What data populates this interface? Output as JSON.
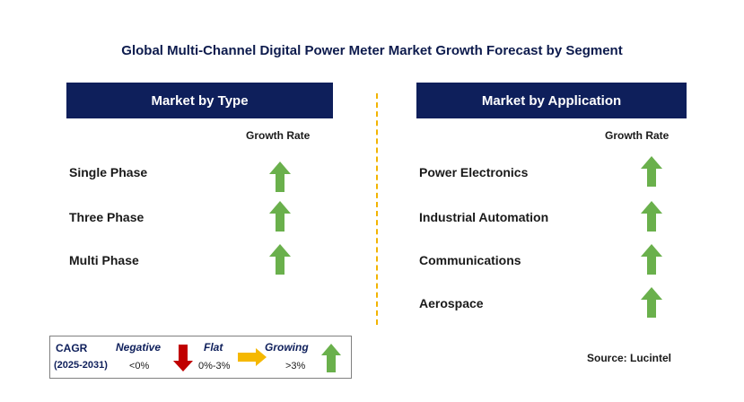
{
  "title": "Global Multi-Channel Digital Power Meter Market Growth Forecast by Segment",
  "left_panel": {
    "header": "Market by Type",
    "column_label": "Growth Rate",
    "rows": [
      {
        "label": "Single Phase",
        "trend": "growing"
      },
      {
        "label": "Three Phase",
        "trend": "growing"
      },
      {
        "label": "Multi Phase",
        "trend": "growing"
      }
    ]
  },
  "right_panel": {
    "header": "Market by Application",
    "column_label": "Growth Rate",
    "rows": [
      {
        "label": "Power Electronics",
        "trend": "growing"
      },
      {
        "label": "Industrial Automation",
        "trend": "growing"
      },
      {
        "label": "Communications",
        "trend": "growing"
      },
      {
        "label": "Aerospace",
        "trend": "growing"
      }
    ]
  },
  "legend": {
    "cagr_label": "CAGR",
    "period": "(2025-2031)",
    "negative": {
      "label": "Negative",
      "range": "<0%",
      "icon": "down-arrow-icon"
    },
    "flat": {
      "label": "Flat",
      "range": "0%-3%",
      "icon": "right-arrow-icon"
    },
    "growing": {
      "label": "Growing",
      "range": ">3%",
      "icon": "up-arrow-icon"
    }
  },
  "source": "Source: Lucintel",
  "colors": {
    "header_bg": "#0e1f5b",
    "growing": "#6ab04c",
    "negative": "#c00000",
    "flat": "#f5b800",
    "divider": "#f2b400"
  }
}
